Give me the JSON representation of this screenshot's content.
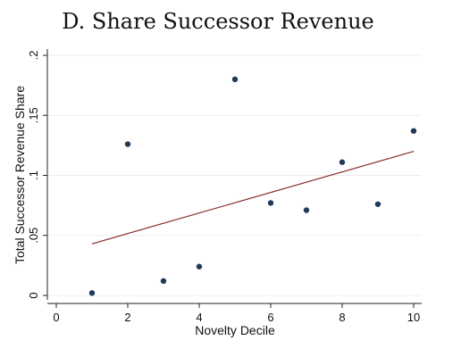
{
  "chart_data": {
    "type": "scatter",
    "title": "D. Share Successor Revenue",
    "xlabel": "Novelty Decile",
    "ylabel": "Total Successor Revenue Share",
    "xlim": [
      0,
      10
    ],
    "ylim": [
      0,
      0.2
    ],
    "xticks": [
      0,
      2,
      4,
      6,
      8,
      10
    ],
    "xtick_labels": [
      "0",
      "2",
      "4",
      "6",
      "8",
      "10"
    ],
    "yticks": [
      0,
      0.05,
      0.1,
      0.15,
      0.2
    ],
    "ytick_labels": [
      "0",
      ".05",
      ".1",
      ".15",
      ".2"
    ],
    "grid": true,
    "points": [
      {
        "x": 1,
        "y": 0.002
      },
      {
        "x": 2,
        "y": 0.126
      },
      {
        "x": 3,
        "y": 0.012
      },
      {
        "x": 4,
        "y": 0.024
      },
      {
        "x": 5,
        "y": 0.18
      },
      {
        "x": 6,
        "y": 0.077
      },
      {
        "x": 7,
        "y": 0.071
      },
      {
        "x": 8,
        "y": 0.111
      },
      {
        "x": 9,
        "y": 0.076
      },
      {
        "x": 10,
        "y": 0.137
      }
    ],
    "fit_line": {
      "x": [
        1,
        10
      ],
      "y": [
        0.043,
        0.12
      ]
    },
    "colors": {
      "points": "#1f3b57",
      "fit_line": "#8b2a2a"
    }
  }
}
